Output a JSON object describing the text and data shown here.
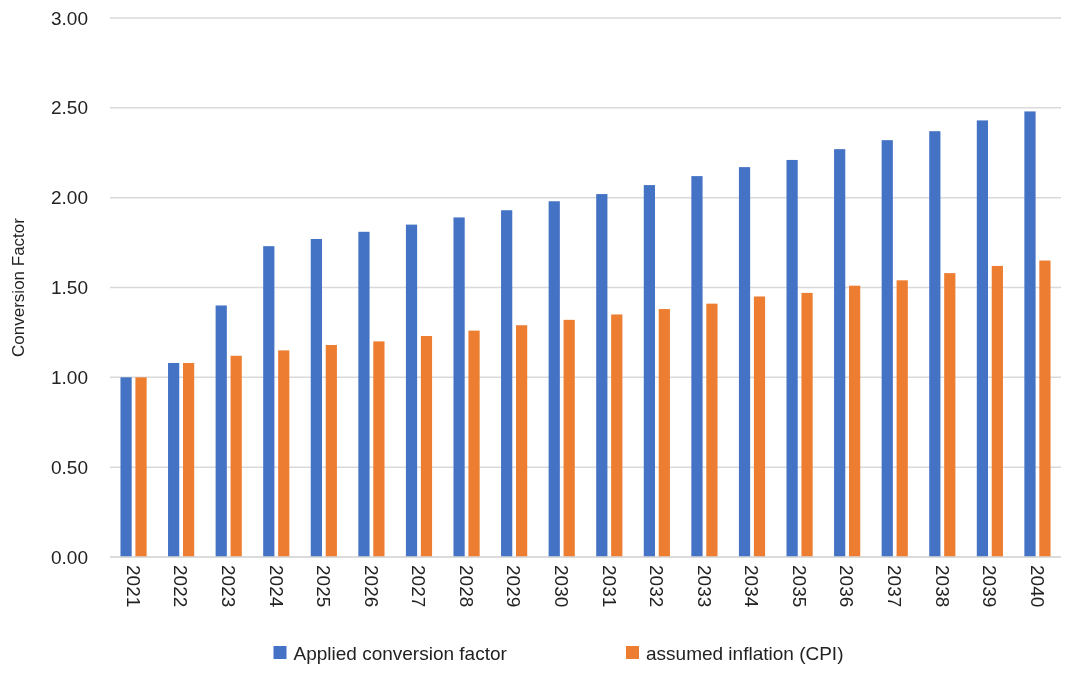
{
  "chart_data": {
    "type": "bar",
    "ylabel": "Conversion Factor",
    "categories": [
      "2021",
      "2022",
      "2023",
      "2024",
      "2025",
      "2026",
      "2027",
      "2028",
      "2029",
      "2030",
      "2031",
      "2032",
      "2033",
      "2034",
      "2035",
      "2036",
      "2037",
      "2038",
      "2039",
      "2040"
    ],
    "series": [
      {
        "name": "Applied conversion factor",
        "color": "#4472c4",
        "values": [
          1.0,
          1.08,
          1.4,
          1.73,
          1.77,
          1.81,
          1.85,
          1.89,
          1.93,
          1.98,
          2.02,
          2.07,
          2.12,
          2.17,
          2.21,
          2.27,
          2.32,
          2.37,
          2.43,
          2.48
        ]
      },
      {
        "name": "assumed inflation (CPI)",
        "color": "#ed7d31",
        "values": [
          1.0,
          1.08,
          1.12,
          1.15,
          1.18,
          1.2,
          1.23,
          1.26,
          1.29,
          1.32,
          1.35,
          1.38,
          1.41,
          1.45,
          1.47,
          1.51,
          1.54,
          1.58,
          1.62,
          1.65
        ]
      }
    ],
    "ylim": [
      0,
      3
    ],
    "yticks": [
      {
        "value": 0,
        "label": "0.00"
      },
      {
        "value": 0.5,
        "label": "0.50"
      },
      {
        "value": 1,
        "label": "1.00"
      },
      {
        "value": 1.5,
        "label": "1.50"
      },
      {
        "value": 2,
        "label": "2.00"
      },
      {
        "value": 2.5,
        "label": "2.50"
      },
      {
        "value": 3,
        "label": "3.00"
      }
    ],
    "grid": "y",
    "legend": "bottom"
  }
}
